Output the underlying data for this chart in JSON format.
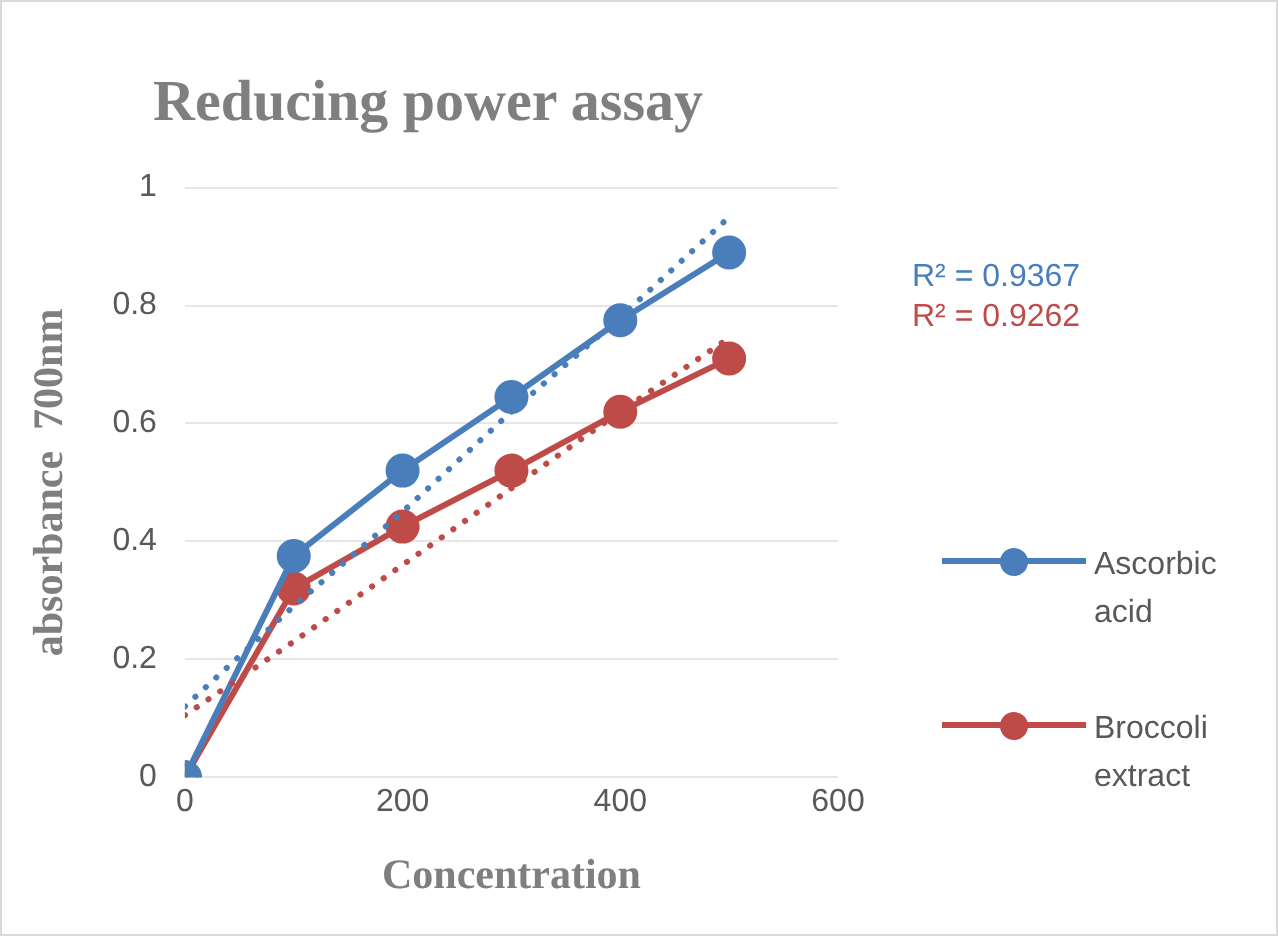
{
  "chart_data": {
    "type": "line",
    "title": "Reducing power assay",
    "xlabel": "Concentration",
    "ylabel": "absorbance  700nm",
    "x": [
      0,
      100,
      200,
      300,
      400,
      500
    ],
    "series": [
      {
        "name": "Ascorbic acid",
        "color": "#4a7ebb",
        "values": [
          0,
          0.375,
          0.52,
          0.645,
          0.775,
          0.89
        ]
      },
      {
        "name": "Broccoli extract",
        "color": "#be4b48",
        "values": [
          0,
          0.32,
          0.425,
          0.52,
          0.62,
          0.71
        ]
      },
      {
        "type": "line",
        "color": "#4a7ebb",
        "values": [
          0.12,
          0.29,
          0.45,
          0.62,
          0.78,
          0.95
        ],
        "line_style": "dotted",
        "marker": "none"
      },
      {
        "type": "line",
        "color": "#be4b48",
        "values": [
          0.105,
          0.23,
          0.36,
          0.49,
          0.62,
          0.745
        ],
        "line_style": "dotted",
        "marker": "none"
      }
    ],
    "annotations": [
      "R² = 0.9367",
      "R² = 0.9262"
    ],
    "xlim": [
      0,
      600
    ],
    "xticks": [
      0,
      200,
      400,
      600
    ],
    "ylim": [
      0,
      1
    ],
    "yticks": [
      0,
      0.2,
      0.4,
      0.6,
      0.8,
      1
    ],
    "grid": "y",
    "legend": "right",
    "marker": "circle",
    "line_style": "solid"
  }
}
